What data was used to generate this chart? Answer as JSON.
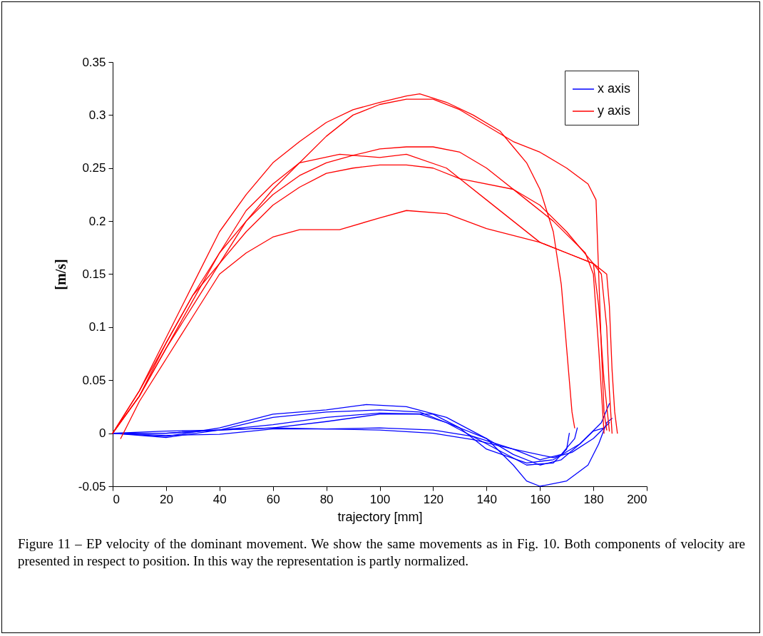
{
  "chart_data": {
    "type": "line",
    "xlabel": "trajectory [mm]",
    "ylabel": "[m/s]",
    "xlim": [
      0,
      200
    ],
    "xticks": [
      0,
      20,
      40,
      60,
      80,
      100,
      120,
      140,
      160,
      180,
      200
    ],
    "ylim": [
      -0.05,
      0.35
    ],
    "yticks": [
      -0.05,
      0,
      0.05,
      0.1,
      0.15,
      0.2,
      0.25,
      0.3,
      0.35
    ],
    "legend": "top right",
    "grid": false,
    "line_style": "solid",
    "annotations": [
      "Figure 11 – EP velocity of the dominant movement. We show the same movements as in Fig. 10. Both components of velocity are presented in respect to position. In this way the representation is partly normalized."
    ],
    "series": [
      {
        "name": "x axis",
        "color": "#0000ff",
        "x": [
          0,
          20,
          40,
          60,
          80,
          95,
          110,
          125,
          140,
          150,
          155,
          160,
          170,
          178,
          182,
          185,
          187
        ],
        "values": [
          0,
          -0.003,
          0.005,
          0.018,
          0.022,
          0.027,
          0.025,
          0.015,
          -0.005,
          -0.03,
          -0.045,
          -0.05,
          -0.045,
          -0.03,
          -0.01,
          0.01,
          0.014
        ]
      },
      {
        "name": "y axis",
        "color": "#ff0000",
        "x": [
          0,
          10,
          20,
          30,
          40,
          50,
          60,
          70,
          80,
          90,
          100,
          110,
          115,
          125,
          135,
          145,
          150,
          155,
          160,
          165,
          168,
          170,
          172,
          173
        ],
        "values": [
          0,
          0.04,
          0.09,
          0.14,
          0.19,
          0.225,
          0.255,
          0.275,
          0.293,
          0.305,
          0.312,
          0.318,
          0.32,
          0.312,
          0.3,
          0.285,
          0.27,
          0.255,
          0.23,
          0.19,
          0.14,
          0.08,
          0.02,
          0.005
        ]
      },
      {
        "color": "#0000ff",
        "x": [
          0,
          20,
          40,
          60,
          80,
          100,
          120,
          135,
          150,
          165,
          172,
          180,
          184,
          186
        ],
        "values": [
          0,
          0.002,
          0.003,
          0.005,
          0.004,
          0.003,
          0,
          -0.006,
          -0.015,
          -0.023,
          -0.018,
          -0.005,
          0.005,
          0.01
        ]
      },
      {
        "color": "#0000ff",
        "x": [
          0,
          20,
          40,
          60,
          80,
          100,
          120,
          130,
          140,
          155,
          165,
          175,
          183,
          186
        ],
        "values": [
          0,
          -0.004,
          0.003,
          0.008,
          0.015,
          0.019,
          0.018,
          0.005,
          -0.015,
          -0.028,
          -0.025,
          -0.01,
          0.01,
          0.028
        ]
      },
      {
        "color": "#0000ff",
        "x": [
          0,
          20,
          40,
          60,
          80,
          100,
          115,
          125,
          140,
          150,
          160,
          168,
          175,
          180,
          184
        ],
        "values": [
          0,
          0,
          0.003,
          0.005,
          0.011,
          0.018,
          0.018,
          0.01,
          -0.005,
          -0.02,
          -0.03,
          -0.025,
          -0.01,
          0.002,
          0.005
        ]
      },
      {
        "color": "#0000ff",
        "x": [
          0,
          20,
          40,
          60,
          80,
          100,
          115,
          125,
          140,
          155,
          165,
          170,
          171
        ],
        "values": [
          0,
          0,
          0.003,
          0.015,
          0.02,
          0.022,
          0.02,
          0.01,
          -0.01,
          -0.03,
          -0.028,
          -0.015,
          0
        ]
      },
      {
        "color": "#0000ff",
        "x": [
          0,
          20,
          40,
          60,
          80,
          100,
          120,
          135,
          150,
          160,
          168,
          173,
          174
        ],
        "values": [
          0,
          -0.002,
          -0.001,
          0.004,
          0.004,
          0.005,
          0.003,
          -0.003,
          -0.015,
          -0.025,
          -0.02,
          -0.005,
          0.005
        ]
      },
      {
        "color": "#ff0000",
        "x": [
          0,
          10,
          20,
          30,
          40,
          50,
          60,
          70,
          80,
          90,
          100,
          110,
          120,
          130,
          140,
          150,
          160,
          170,
          178,
          181,
          182,
          183,
          184,
          185
        ],
        "values": [
          0,
          0.035,
          0.085,
          0.13,
          0.16,
          0.2,
          0.23,
          0.255,
          0.28,
          0.3,
          0.31,
          0.315,
          0.315,
          0.305,
          0.29,
          0.275,
          0.265,
          0.25,
          0.235,
          0.22,
          0.15,
          0.08,
          0.02,
          0.003
        ]
      },
      {
        "color": "#ff0000",
        "x": [
          0,
          10,
          20,
          30,
          40,
          50,
          60,
          70,
          80,
          90,
          100,
          110,
          120,
          130,
          140,
          155,
          165,
          177,
          180,
          182,
          184
        ],
        "values": [
          0,
          0.04,
          0.085,
          0.13,
          0.17,
          0.2,
          0.225,
          0.243,
          0.255,
          0.262,
          0.268,
          0.27,
          0.27,
          0.265,
          0.25,
          0.22,
          0.2,
          0.17,
          0.15,
          0.08,
          0
        ]
      },
      {
        "color": "#ff0000",
        "x": [
          0,
          10,
          20,
          30,
          40,
          50,
          60,
          70,
          85,
          100,
          110,
          125,
          140,
          150,
          160,
          170,
          180,
          185,
          186,
          187,
          188,
          189
        ],
        "values": [
          0,
          0.035,
          0.08,
          0.125,
          0.17,
          0.21,
          0.235,
          0.255,
          0.263,
          0.26,
          0.263,
          0.25,
          0.22,
          0.2,
          0.18,
          0.17,
          0.16,
          0.15,
          0.12,
          0.06,
          0.02,
          0
        ]
      },
      {
        "color": "#ff0000",
        "x": [
          0,
          10,
          20,
          30,
          40,
          50,
          60,
          70,
          80,
          90,
          100,
          110,
          120,
          130,
          150,
          160,
          170,
          180,
          182,
          184,
          186
        ],
        "values": [
          0,
          0.035,
          0.08,
          0.12,
          0.16,
          0.19,
          0.215,
          0.232,
          0.245,
          0.25,
          0.253,
          0.253,
          0.25,
          0.24,
          0.23,
          0.215,
          0.19,
          0.16,
          0.12,
          0.05,
          0.002
        ]
      },
      {
        "color": "#ff0000",
        "x": [
          3,
          5,
          10,
          20,
          30,
          40,
          50,
          60,
          70,
          85,
          100,
          110,
          125,
          140,
          160,
          170,
          180,
          183,
          185,
          186,
          187
        ],
        "values": [
          -0.005,
          0.005,
          0.03,
          0.07,
          0.11,
          0.15,
          0.17,
          0.185,
          0.192,
          0.192,
          0.203,
          0.21,
          0.207,
          0.193,
          0.18,
          0.17,
          0.16,
          0.15,
          0.1,
          0.04,
          0
        ]
      }
    ]
  }
}
